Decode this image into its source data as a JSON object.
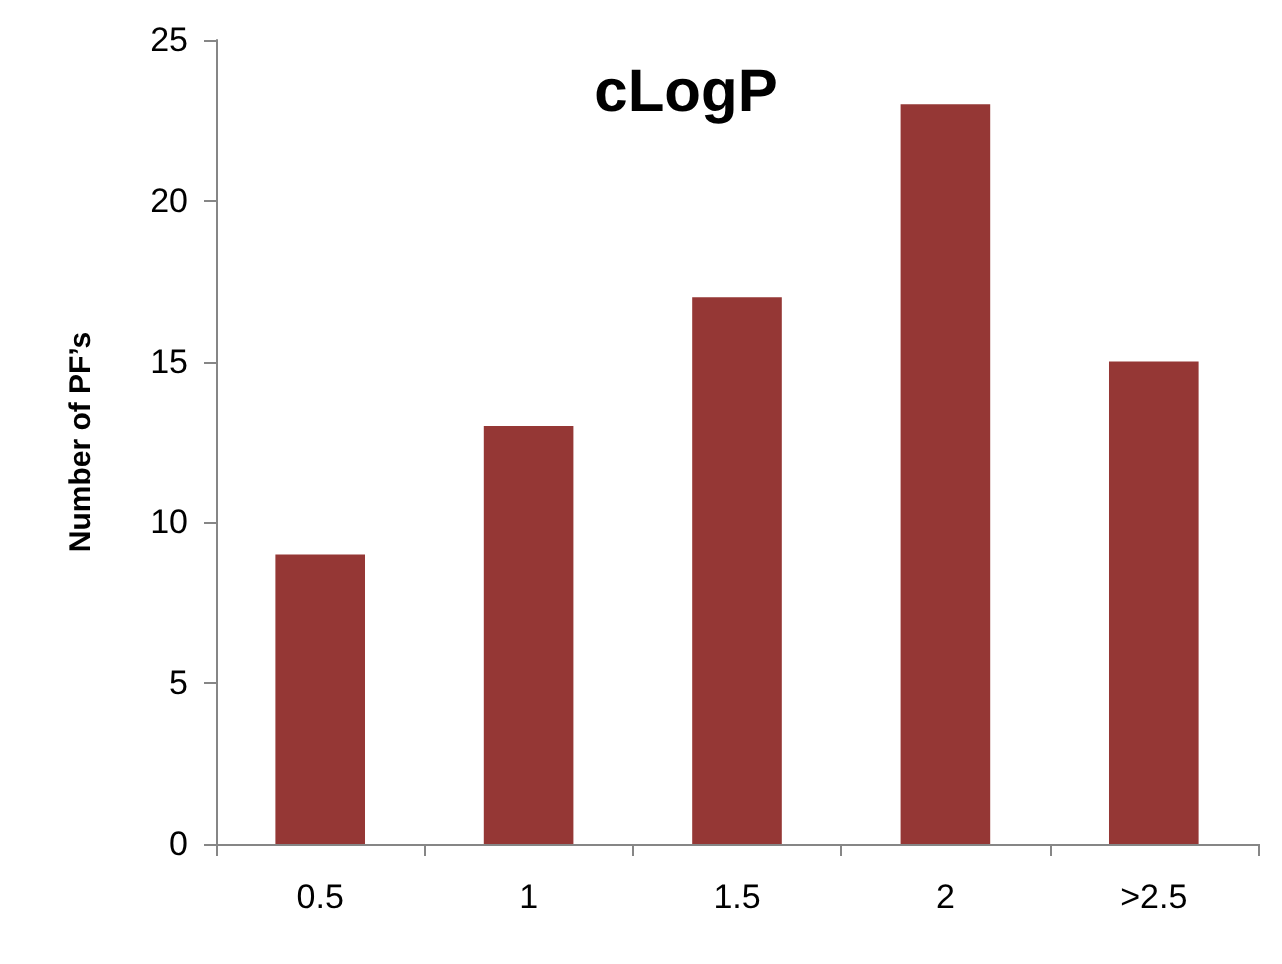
{
  "chart_data": {
    "type": "bar",
    "title": "cLogP",
    "ylabel": "Number of PF’s",
    "categories": [
      "0.5",
      "1",
      "1.5",
      "2",
      ">2.5"
    ],
    "values": [
      9,
      13,
      17,
      23,
      15
    ],
    "color": "#953735",
    "ylim": [
      0,
      25
    ],
    "yticks": [
      0,
      5,
      10,
      15,
      20,
      25
    ],
    "grid": false
  }
}
